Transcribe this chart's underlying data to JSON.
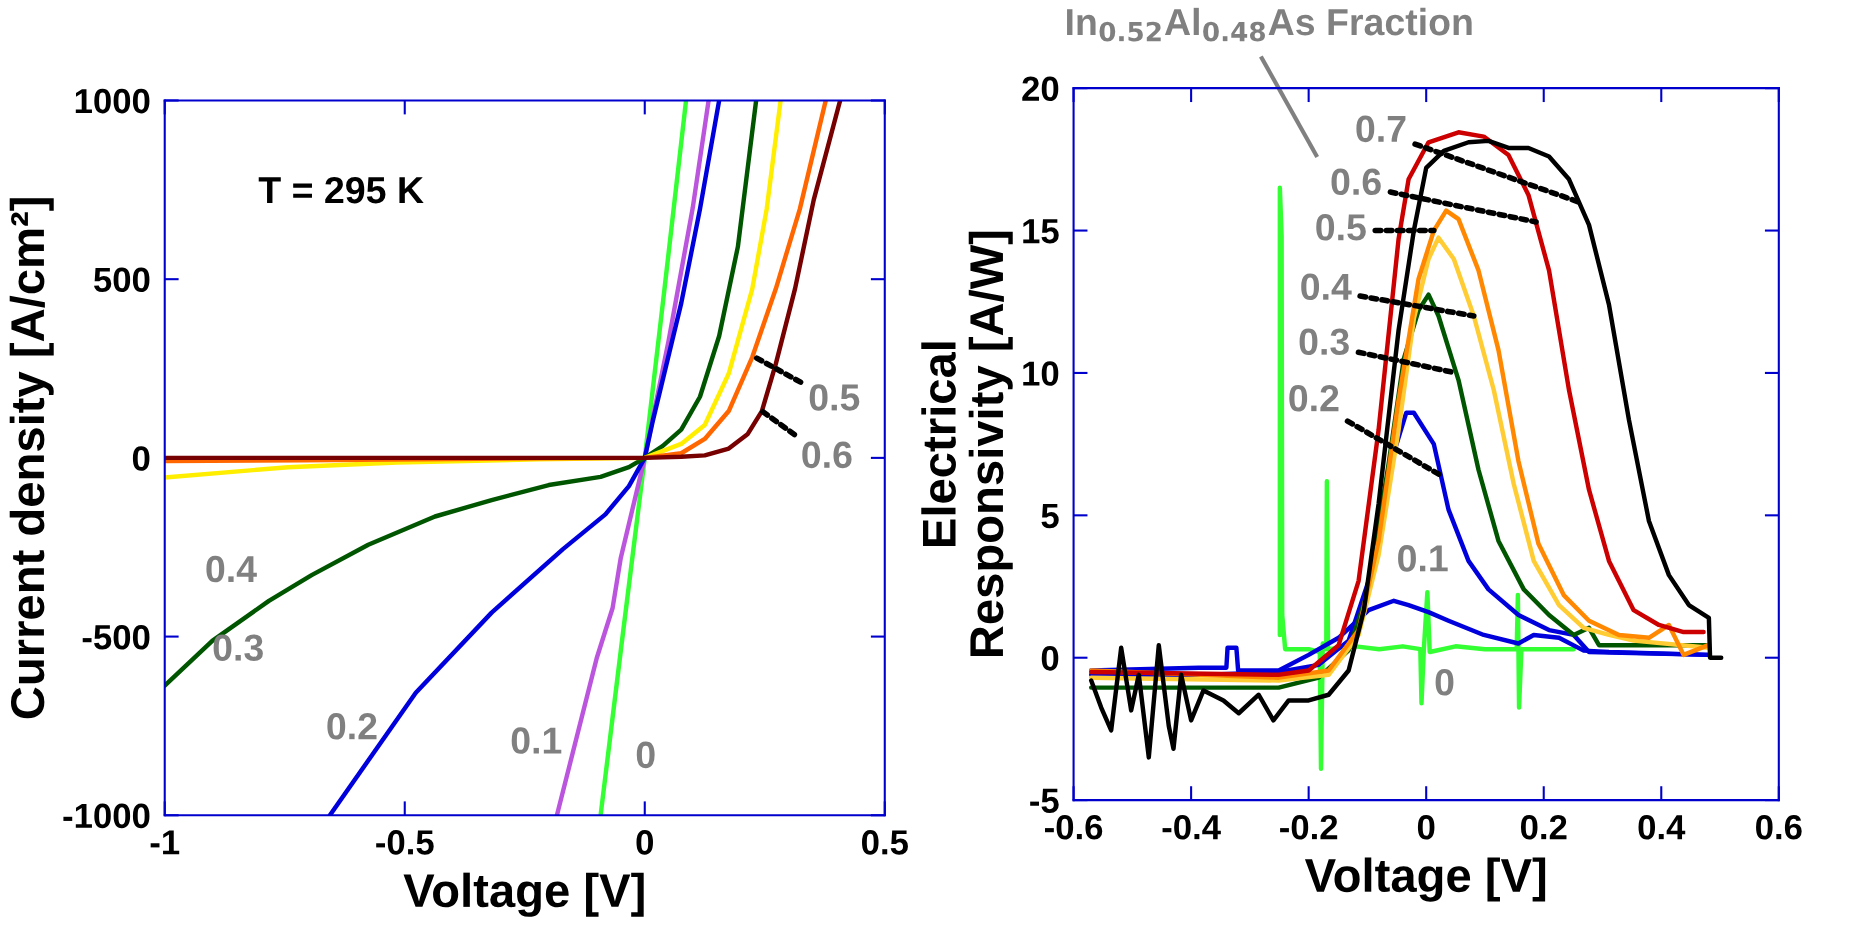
{
  "chart_data": [
    {
      "type": "line",
      "xlabel": "Voltage [V]",
      "ylabel": "Current density [A/cm²]",
      "xlim": [
        -1,
        0.5
      ],
      "ylim": [
        -1000,
        1000
      ],
      "xticks": [
        -1,
        -0.5,
        0,
        0.5
      ],
      "yticks": [
        -1000,
        -500,
        0,
        500,
        1000
      ],
      "grid": false,
      "series": [
        {
          "color": "#33ff33",
          "x": [
            -0.092,
            -0.05,
            0,
            0.04,
            0.086
          ],
          "values": [
            -1000,
            -540,
            0,
            460,
            1000
          ]
        },
        {
          "color": "#bb55dd",
          "x": [
            -0.183,
            -0.1,
            -0.067,
            -0.05,
            0,
            0.05,
            0.1,
            0.133
          ],
          "values": [
            -1000,
            -560,
            -420,
            -280,
            0,
            330,
            700,
            1000
          ]
        },
        {
          "color": "#0000dd",
          "x": [
            -0.656,
            -0.477,
            -0.319,
            -0.171,
            -0.082,
            -0.033,
            0,
            0.017,
            0.076,
            0.115,
            0.155
          ],
          "values": [
            -1000,
            -657,
            -433,
            -256,
            -158,
            -79,
            0,
            105,
            433,
            696,
            1000
          ]
        },
        {
          "color": "#005500",
          "x": [
            -1,
            -0.901,
            -0.783,
            -0.694,
            -0.576,
            -0.437,
            -0.319,
            -0.2,
            -0.092,
            -0.033,
            0,
            0.037,
            0.076,
            0.115,
            0.155,
            0.194,
            0.232
          ],
          "values": [
            -637,
            -512,
            -400,
            -328,
            -243,
            -164,
            -118,
            -76,
            -53,
            -26,
            0,
            33,
            79,
            171,
            341,
            591,
            1000
          ]
        },
        {
          "color": "#ffee00",
          "x": [
            -1,
            -0.743,
            -0.516,
            -0.22,
            0,
            0.076,
            0.125,
            0.175,
            0.224,
            0.254,
            0.283
          ],
          "values": [
            -55,
            -26,
            -13,
            -4,
            0,
            39,
            92,
            236,
            473,
            696,
            1000
          ]
        },
        {
          "color": "#ff6600",
          "x": [
            -1,
            -0.714,
            -0.22,
            0,
            0.076,
            0.125,
            0.175,
            0.224,
            0.273,
            0.323,
            0.377
          ],
          "values": [
            -9,
            -7,
            -1,
            0,
            13,
            53,
            131,
            282,
            473,
            696,
            1000
          ]
        },
        {
          "color": "#770000",
          "x": [
            -1,
            -0.5,
            0,
            0.076,
            0.125,
            0.175,
            0.214,
            0.244,
            0.273,
            0.313,
            0.352,
            0.407
          ],
          "values": [
            0,
            0,
            0,
            3,
            7,
            26,
            66,
            131,
            263,
            473,
            722,
            1000
          ]
        }
      ],
      "annotations": [
        "T = 295 K",
        "0.4",
        "0.3",
        "0.2",
        "0.1",
        "0",
        {
          "text": "0.5",
          "x": 0.224,
          "y": 286
        },
        {
          "text": "0.6",
          "x": 0.244,
          "y": 131
        }
      ]
    },
    {
      "type": "line",
      "xlabel": "Voltage [V]",
      "ylabel": "Electrical\nResponsivity [A/W]",
      "xlim": [
        -0.6,
        0.6
      ],
      "ylim": [
        -5,
        20
      ],
      "xticks": [
        -0.6,
        -0.4,
        -0.2,
        0,
        0.2,
        0.4,
        0.6
      ],
      "yticks": [
        -5,
        0,
        5,
        10,
        15,
        20
      ],
      "grid": false,
      "series": [
        {
          "color": "#33ff33",
          "x": [
            -0.249,
            -0.249,
            -0.246,
            -0.245,
            -0.24,
            -0.2,
            -0.181,
            -0.179,
            -0.176,
            -0.17,
            -0.169,
            -0.167,
            -0.12,
            -0.08,
            -0.04,
            -0.01,
            -0.008,
            -0.004,
            0.002,
            0.006,
            0.05,
            0.1,
            0.154,
            0.156,
            0.158,
            0.162,
            0.2,
            0.251
          ],
          "values": [
            0.8,
            16.5,
            14.8,
            1.5,
            0.3,
            0.3,
            0.2,
            -3.9,
            0.5,
            0.3,
            6.2,
            0.3,
            0.4,
            0.3,
            0.4,
            0.3,
            -1.6,
            0.3,
            2.3,
            0.2,
            0.4,
            0.3,
            0.3,
            2.2,
            -1.75,
            0.3,
            0.3,
            0.3
          ]
        },
        {
          "color": "#0000dd",
          "x": [
            -0.57,
            -0.387,
            -0.34,
            -0.338,
            -0.323,
            -0.32,
            -0.302,
            -0.251,
            -0.2,
            -0.149,
            -0.098,
            -0.055,
            -0.03,
            0.004,
            0.038,
            0.098,
            0.157,
            0.183,
            0.226,
            0.268,
            0.311,
            0.481
          ],
          "values": [
            -0.45,
            -0.35,
            -0.35,
            0.35,
            0.35,
            -0.45,
            -0.45,
            -0.45,
            0.1,
            0.7,
            1.67,
            2.0,
            1.85,
            1.6,
            1.3,
            0.8,
            0.5,
            0.8,
            0.7,
            0.25,
            0.2,
            0.1
          ]
        },
        {
          "color": "#0000dd",
          "x": [
            -0.57,
            -0.37,
            -0.251,
            -0.183,
            -0.132,
            -0.098,
            -0.064,
            -0.034,
            -0.021,
            0.013,
            0.038,
            0.072,
            0.106,
            0.157,
            0.209,
            0.251,
            0.277,
            0.481
          ],
          "values": [
            -0.6,
            -0.6,
            -0.5,
            -0.25,
            0.6,
            2.7,
            6.6,
            8.6,
            8.6,
            7.5,
            5.2,
            3.4,
            2.4,
            1.5,
            0.97,
            0.8,
            0.2,
            0.1
          ]
        },
        {
          "color": "#005500",
          "x": [
            -0.57,
            -0.251,
            -0.183,
            -0.132,
            -0.098,
            -0.064,
            -0.038,
            -0.013,
            0.004,
            0.021,
            0.055,
            0.089,
            0.123,
            0.166,
            0.209,
            0.251,
            0.277,
            0.294,
            0.353,
            0.481
          ],
          "values": [
            -1.05,
            -1.05,
            -0.7,
            0.26,
            2.4,
            6.8,
            10.5,
            12.2,
            12.75,
            12.0,
            9.75,
            6.6,
            4.1,
            2.4,
            1.5,
            0.8,
            1.05,
            0.44,
            0.44,
            0.44
          ]
        },
        {
          "color": "#ffcc33",
          "x": [
            -0.57,
            -0.251,
            -0.166,
            -0.115,
            -0.081,
            -0.047,
            -0.021,
            0.004,
            0.021,
            0.047,
            0.081,
            0.115,
            0.149,
            0.183,
            0.226,
            0.268,
            0.311,
            0.353,
            0.481
          ],
          "values": [
            -0.7,
            -0.8,
            -0.6,
            0.8,
            3.6,
            8.0,
            11.9,
            14.0,
            14.75,
            14.0,
            12.0,
            9.4,
            6.1,
            3.4,
            1.85,
            1.05,
            0.8,
            0.6,
            0.35
          ]
        },
        {
          "color": "#ff8800",
          "x": [
            -0.57,
            -0.251,
            -0.166,
            -0.115,
            -0.081,
            -0.047,
            -0.013,
            0.013,
            0.034,
            0.055,
            0.089,
            0.123,
            0.157,
            0.191,
            0.234,
            0.277,
            0.328,
            0.379,
            0.413,
            0.438,
            0.481
          ],
          "values": [
            -0.45,
            -0.7,
            -0.45,
            0.97,
            4.1,
            9.05,
            13.3,
            15.0,
            15.7,
            15.4,
            13.6,
            10.8,
            6.9,
            4.0,
            2.2,
            1.3,
            0.8,
            0.7,
            1.15,
            0.1,
            0.45
          ]
        },
        {
          "color": "#cc0000",
          "x": [
            -0.57,
            -0.251,
            -0.2,
            -0.149,
            -0.115,
            -0.081,
            -0.047,
            -0.03,
            0.004,
            0.055,
            0.098,
            0.14,
            0.174,
            0.209,
            0.243,
            0.277,
            0.311,
            0.353,
            0.396,
            0.438,
            0.472
          ],
          "values": [
            -0.5,
            -0.6,
            -0.45,
            0.44,
            2.7,
            8.0,
            14.7,
            16.8,
            18.1,
            18.45,
            18.3,
            17.65,
            16.25,
            13.6,
            9.4,
            5.9,
            3.4,
            1.67,
            1.15,
            0.9,
            0.9
          ]
        },
        {
          "color": "#000000",
          "x": [
            -0.57,
            -0.553,
            -0.536,
            -0.519,
            -0.502,
            -0.489,
            -0.472,
            -0.455,
            -0.438,
            -0.43,
            -0.417,
            -0.4,
            -0.379,
            -0.345,
            -0.319,
            -0.285,
            -0.26,
            -0.234,
            -0.2,
            -0.166,
            -0.132,
            -0.106,
            -0.081,
            -0.047,
            -0.021,
            0,
            0.03,
            0.072,
            0.106,
            0.14,
            0.174,
            0.209,
            0.243,
            0.277,
            0.311,
            0.345,
            0.379,
            0.413,
            0.447,
            0.481,
            0.483,
            0.502
          ],
          "values": [
            -0.8,
            -1.75,
            -2.55,
            0.35,
            -1.85,
            -0.6,
            -3.5,
            0.44,
            -2.4,
            -3.2,
            -0.6,
            -2.2,
            -1.15,
            -1.5,
            -1.95,
            -1.3,
            -2.2,
            -1.5,
            -1.5,
            -1.3,
            -0.45,
            1.67,
            5.4,
            11.5,
            15.0,
            17.2,
            17.8,
            18.1,
            18.15,
            17.9,
            17.9,
            17.6,
            16.8,
            15.2,
            12.4,
            8.35,
            4.8,
            2.9,
            1.85,
            1.4,
            0,
            0
          ]
        }
      ],
      "annotations": [
        {
          "text": "0.7",
          "x": 0.26,
          "y": 16.0
        },
        {
          "text": "0.6",
          "x": 0.187,
          "y": 15.3
        },
        {
          "text": "0.5",
          "x": 0.013,
          "y": 15.0
        },
        {
          "text": "0.4",
          "x": 0.081,
          "y": 12.0
        },
        {
          "text": "0.3",
          "x": 0.051,
          "y": 10.0
        },
        {
          "text": "0.2",
          "x": 0.025,
          "y": 6.4
        },
        "0.1",
        "0",
        "In$_{0.52}$Al$_{0.48}$As Fraction"
      ]
    }
  ]
}
